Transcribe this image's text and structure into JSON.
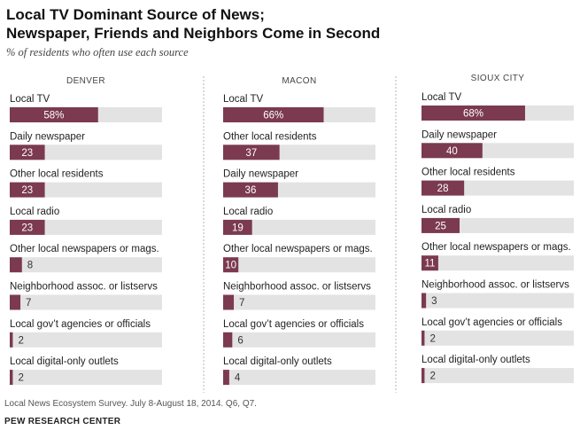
{
  "title_line1": "Local TV Dominant Source of News;",
  "title_line2": "Newspaper, Friends and Neighbors Come in Second",
  "subtitle": "% of residents who often use each source",
  "note": "Local News Ecosystem Survey. July 8-August 18, 2014. Q6, Q7.",
  "brand": "PEW RESEARCH CENTER",
  "colors": {
    "bar": "#7b3a4f",
    "track": "#e3e3e3",
    "label_light": "#ffffff",
    "label_dark": "#333333",
    "divider": "#b5b5b5"
  },
  "chart_data": {
    "type": "bar",
    "orientation": "horizontal",
    "title": "Local TV Dominant Source of News; Newspaper, Friends and Neighbors Come in Second",
    "subtitle": "% of residents who often use each source",
    "xlim": [
      0,
      100
    ],
    "panels": [
      {
        "name": "DENVER",
        "items": [
          {
            "label": "Local TV",
            "value": 58,
            "display": "58%"
          },
          {
            "label": "Daily newspaper",
            "value": 23,
            "display": "23"
          },
          {
            "label": "Other local residents",
            "value": 23,
            "display": "23"
          },
          {
            "label": "Local radio",
            "value": 23,
            "display": "23"
          },
          {
            "label": "Other local newspapers or mags.",
            "value": 8,
            "display": "8"
          },
          {
            "label": "Neighborhood assoc. or listservs",
            "value": 7,
            "display": "7"
          },
          {
            "label": "Local gov’t agencies or officials",
            "value": 2,
            "display": "2"
          },
          {
            "label": "Local digital-only outlets",
            "value": 2,
            "display": "2"
          }
        ]
      },
      {
        "name": "MACON",
        "items": [
          {
            "label": "Local TV",
            "value": 66,
            "display": "66%"
          },
          {
            "label": "Other local residents",
            "value": 37,
            "display": "37"
          },
          {
            "label": "Daily newspaper",
            "value": 36,
            "display": "36"
          },
          {
            "label": "Local radio",
            "value": 19,
            "display": "19"
          },
          {
            "label": "Other local newspapers or mags.",
            "value": 10,
            "display": "10"
          },
          {
            "label": "Neighborhood assoc. or listservs",
            "value": 7,
            "display": "7"
          },
          {
            "label": "Local gov’t agencies or officials",
            "value": 6,
            "display": "6"
          },
          {
            "label": "Local digital-only outlets",
            "value": 4,
            "display": "4"
          }
        ]
      },
      {
        "name": "SIOUX CITY",
        "items": [
          {
            "label": "Local TV",
            "value": 68,
            "display": "68%"
          },
          {
            "label": "Daily newspaper",
            "value": 40,
            "display": "40"
          },
          {
            "label": "Other local residents",
            "value": 28,
            "display": "28"
          },
          {
            "label": "Local radio",
            "value": 25,
            "display": "25"
          },
          {
            "label": "Other local newspapers or mags.",
            "value": 11,
            "display": "11"
          },
          {
            "label": "Neighborhood assoc. or listservs",
            "value": 3,
            "display": "3"
          },
          {
            "label": "Local gov’t agencies or officials",
            "value": 2,
            "display": "2"
          },
          {
            "label": "Local digital-only outlets",
            "value": 2,
            "display": "2"
          }
        ]
      }
    ]
  }
}
